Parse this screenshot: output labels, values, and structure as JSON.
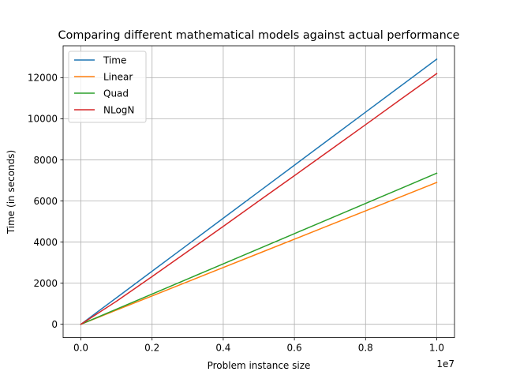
{
  "chart_data": {
    "type": "line",
    "title": "Comparing different mathematical models against actual performance",
    "xlabel": "Problem instance size",
    "ylabel": "Time (in seconds)",
    "x_offset_label": "1e7",
    "xlim": [
      -500000,
      10500000
    ],
    "ylim": [
      -650,
      13550
    ],
    "x_ticks": [
      0,
      2000000,
      4000000,
      6000000,
      8000000,
      10000000
    ],
    "x_tick_labels": [
      "0.0",
      "0.2",
      "0.4",
      "0.6",
      "0.8",
      "1.0"
    ],
    "y_ticks": [
      0,
      2000,
      4000,
      6000,
      8000,
      10000,
      12000
    ],
    "y_tick_labels": [
      "0",
      "2000",
      "4000",
      "6000",
      "8000",
      "10000",
      "12000"
    ],
    "grid": true,
    "legend_position": "upper-left",
    "x": [
      0,
      1000000,
      2000000,
      3000000,
      4000000,
      5000000,
      6000000,
      7000000,
      8000000,
      9000000,
      10000000
    ],
    "series": [
      {
        "name": "Time",
        "color": "#1f77b4",
        "values": [
          0,
          1290,
          2580,
          3870,
          5160,
          6450,
          7740,
          9030,
          10320,
          11610,
          12900
        ]
      },
      {
        "name": "Linear",
        "color": "#ff7f0e",
        "values": [
          0,
          690,
          1380,
          2070,
          2760,
          3450,
          4140,
          4830,
          5520,
          6210,
          6900
        ]
      },
      {
        "name": "Quad",
        "color": "#2ca02c",
        "values": [
          0,
          735,
          1470,
          2205,
          2940,
          3675,
          4410,
          5145,
          5880,
          6615,
          7350
        ]
      },
      {
        "name": "NLogN",
        "color": "#d62728",
        "values": [
          0,
          1120,
          2320,
          3540,
          4760,
          6000,
          7230,
          8470,
          9710,
          10960,
          12200
        ]
      }
    ]
  }
}
